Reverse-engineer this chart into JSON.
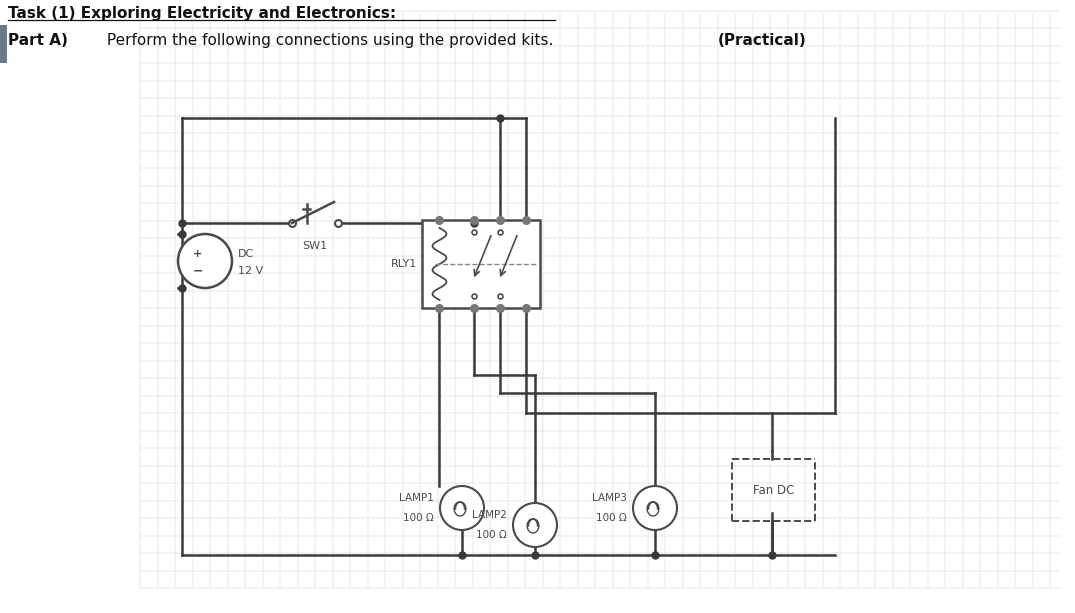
{
  "bg_color": "#ffffff",
  "grid_color": "#c8d4e0",
  "line_color": "#3a3a3a",
  "component_color": "#4a4a4a",
  "dashed_color": "#888888",
  "figsize": [
    10.75,
    6.13
  ],
  "title1": "Task (1) Exploring Electricity and Electronics:",
  "title2_bold": "Part A)",
  "title2_normal": " Perform the following connections using the provided kits. ",
  "title2_bold2": "(Practical)",
  "dc_label1": "DC",
  "dc_label2": "12 V",
  "sw_label": "SW1",
  "rly_label": "RLY1",
  "lamp1_label": "LAMP1",
  "lamp1_sub": "100 Ω",
  "lamp2_label": "LAMP2",
  "lamp2_sub": "100 Ω",
  "lamp3_label": "LAMP3",
  "lamp3_sub": "100 Ω",
  "fan_label": "Fan DC"
}
